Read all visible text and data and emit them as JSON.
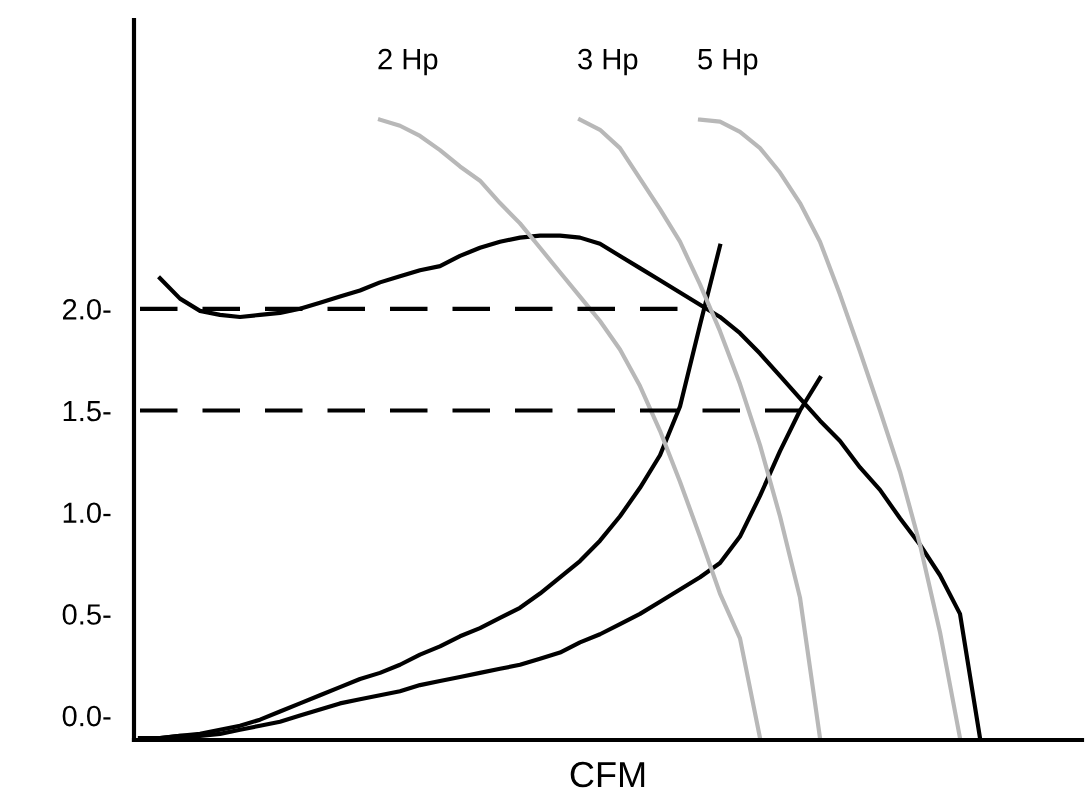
{
  "chart_data": {
    "type": "line",
    "xlabel": "CFM",
    "tick_labels": "y",
    "categories": [
      null,
      null,
      null,
      null,
      null,
      null,
      null,
      null,
      null,
      null,
      null,
      null,
      null,
      null,
      null,
      null,
      null,
      null,
      null,
      null,
      null,
      null,
      null,
      null,
      null,
      null,
      null,
      null,
      null,
      null,
      null,
      null,
      null,
      null,
      null,
      null,
      null,
      null,
      null,
      null,
      null,
      null,
      null,
      null,
      null,
      null,
      null,
      null
    ],
    "ylim": [
      -0.12,
      3.42
    ],
    "yticks": [
      {
        "value": 0,
        "label": "0.0-"
      },
      {
        "value": 0.5,
        "label": "0.5-"
      },
      {
        "value": 1,
        "label": "1.0-"
      },
      {
        "value": 1.5,
        "label": "1.5-"
      },
      {
        "value": 2,
        "label": "2.0-"
      }
    ],
    "series": [
      {
        "color": "#000000",
        "values": [
          null,
          2.15,
          2.05,
          1.99,
          1.97,
          1.96,
          1.97,
          1.98,
          2.0,
          2.03,
          2.06,
          2.09,
          2.13,
          2.16,
          2.19,
          2.21,
          2.26,
          2.3,
          2.33,
          2.35,
          2.36,
          2.36,
          2.35,
          2.32,
          2.26,
          2.2,
          2.14,
          2.08,
          2.02,
          1.96,
          1.88,
          1.78,
          1.67,
          1.56,
          1.45,
          1.35,
          1.22,
          1.11,
          0.97,
          0.84,
          0.69,
          0.5,
          -0.11,
          null,
          null,
          null,
          null,
          null
        ]
      },
      {
        "color": "#000000",
        "values": [
          -0.11,
          -0.11,
          -0.1,
          -0.09,
          -0.07,
          -0.05,
          -0.02,
          0.02,
          0.06,
          0.1,
          0.14,
          0.18,
          0.21,
          0.25,
          0.3,
          0.34,
          0.39,
          0.43,
          0.48,
          0.53,
          0.6,
          0.68,
          0.76,
          0.86,
          0.98,
          1.12,
          1.28,
          1.52,
          1.92,
          2.31,
          null,
          null,
          null,
          null,
          null,
          null,
          null,
          null,
          null,
          null,
          null,
          null,
          null,
          null,
          null,
          null,
          null,
          null
        ]
      },
      {
        "color": "#000000",
        "values": [
          -0.11,
          -0.11,
          -0.1,
          -0.1,
          -0.09,
          -0.07,
          -0.05,
          -0.03,
          0.0,
          0.03,
          0.06,
          0.08,
          0.1,
          0.12,
          0.15,
          0.17,
          0.19,
          0.21,
          0.23,
          0.25,
          0.28,
          0.31,
          0.36,
          0.4,
          0.45,
          0.5,
          0.56,
          0.62,
          0.68,
          0.75,
          0.88,
          1.08,
          1.3,
          1.5,
          1.66,
          null,
          null,
          null,
          null,
          null,
          null,
          null,
          null,
          null,
          null,
          null,
          null,
          null
        ]
      },
      {
        "name": "2 Hp",
        "color": "#b8b8b8",
        "values": [
          null,
          null,
          null,
          null,
          null,
          null,
          null,
          null,
          null,
          null,
          null,
          null,
          2.93,
          2.9,
          2.85,
          2.78,
          2.7,
          2.63,
          2.52,
          2.42,
          2.3,
          2.18,
          2.06,
          1.94,
          1.8,
          1.62,
          1.4,
          1.15,
          0.88,
          0.6,
          0.38,
          -0.11,
          null,
          null,
          null,
          null,
          null,
          null,
          null,
          null,
          null,
          null,
          null,
          null,
          null,
          null,
          null,
          null
        ]
      },
      {
        "name": "3 Hp",
        "color": "#b8b8b8",
        "values": [
          null,
          null,
          null,
          null,
          null,
          null,
          null,
          null,
          null,
          null,
          null,
          null,
          null,
          null,
          null,
          null,
          null,
          null,
          null,
          null,
          null,
          null,
          2.93,
          2.88,
          2.79,
          2.64,
          2.49,
          2.33,
          2.12,
          1.89,
          1.63,
          1.33,
          0.98,
          0.58,
          -0.11,
          null,
          null,
          null,
          null,
          null,
          null,
          null,
          null,
          null,
          null,
          null,
          null,
          null
        ]
      },
      {
        "name": "5 Hp",
        "color": "#b8b8b8",
        "values": [
          null,
          null,
          null,
          null,
          null,
          null,
          null,
          null,
          null,
          null,
          null,
          null,
          null,
          null,
          null,
          null,
          null,
          null,
          null,
          null,
          null,
          null,
          null,
          null,
          null,
          null,
          null,
          null,
          2.93,
          2.92,
          2.87,
          2.79,
          2.67,
          2.52,
          2.33,
          2.07,
          1.79,
          1.5,
          1.2,
          0.84,
          0.41,
          -0.11,
          null,
          null,
          null,
          null,
          null,
          null
        ]
      },
      {
        "color": "#000000",
        "line_style": "dashed",
        "values": [
          2.0,
          2.0,
          2.0,
          2.0,
          2.0,
          2.0,
          2.0,
          2.0,
          2.0,
          2.0,
          2.0,
          2.0,
          2.0,
          2.0,
          2.0,
          2.0,
          2.0,
          2.0,
          2.0,
          2.0,
          2.0,
          2.0,
          2.0,
          2.0,
          2.0,
          2.0,
          2.0,
          2.0,
          2.0,
          null,
          null,
          null,
          null,
          null,
          null,
          null,
          null,
          null,
          null,
          null,
          null,
          null,
          null,
          null,
          null,
          null,
          null,
          null
        ]
      },
      {
        "color": "#000000",
        "line_style": "dashed",
        "values": [
          1.5,
          1.5,
          1.5,
          1.5,
          1.5,
          1.5,
          1.5,
          1.5,
          1.5,
          1.5,
          1.5,
          1.5,
          1.5,
          1.5,
          1.5,
          1.5,
          1.5,
          1.5,
          1.5,
          1.5,
          1.5,
          1.5,
          1.5,
          1.5,
          1.5,
          1.5,
          1.5,
          1.5,
          1.5,
          1.5,
          1.5,
          1.5,
          1.5,
          1.5,
          null,
          null,
          null,
          null,
          null,
          null,
          null,
          null,
          null,
          null,
          null,
          null,
          null,
          null
        ]
      }
    ]
  }
}
